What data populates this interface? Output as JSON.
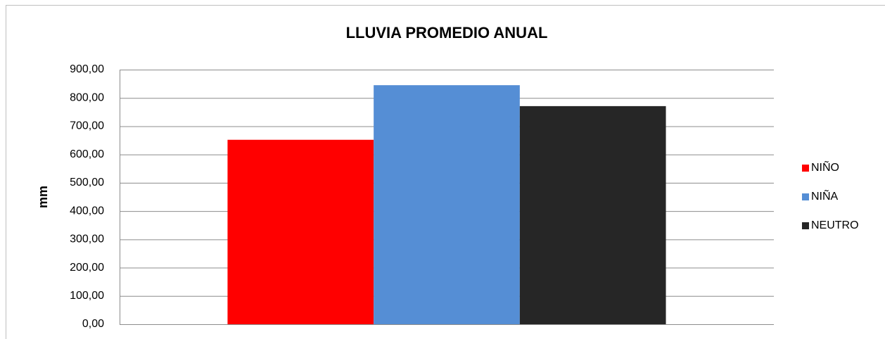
{
  "chart_data": {
    "type": "bar",
    "title": "LLUVIA PROMEDIO ANUAL",
    "y_label": "mm",
    "categories": [
      null
    ],
    "series": [
      {
        "name": "NIÑO",
        "color": "#ff0000",
        "values": [
          652
        ]
      },
      {
        "name": "NIÑA",
        "color": "#558ed5",
        "values": [
          845
        ]
      },
      {
        "name": "NEUTRO",
        "color": "#262626",
        "values": [
          771
        ]
      }
    ],
    "ylim": [
      0,
      900
    ],
    "yticks": [
      {
        "value": 0,
        "label": "0,00"
      },
      {
        "value": 100,
        "label": "100,00"
      },
      {
        "value": 200,
        "label": "200,00"
      },
      {
        "value": 300,
        "label": "300,00"
      },
      {
        "value": 400,
        "label": "400,00"
      },
      {
        "value": 500,
        "label": "500,00"
      },
      {
        "value": 600,
        "label": "600,00"
      },
      {
        "value": 700,
        "label": "700,00"
      },
      {
        "value": 800,
        "label": "800,00"
      },
      {
        "value": 900,
        "label": "900,00"
      }
    ],
    "grid": true,
    "legend": "right"
  }
}
